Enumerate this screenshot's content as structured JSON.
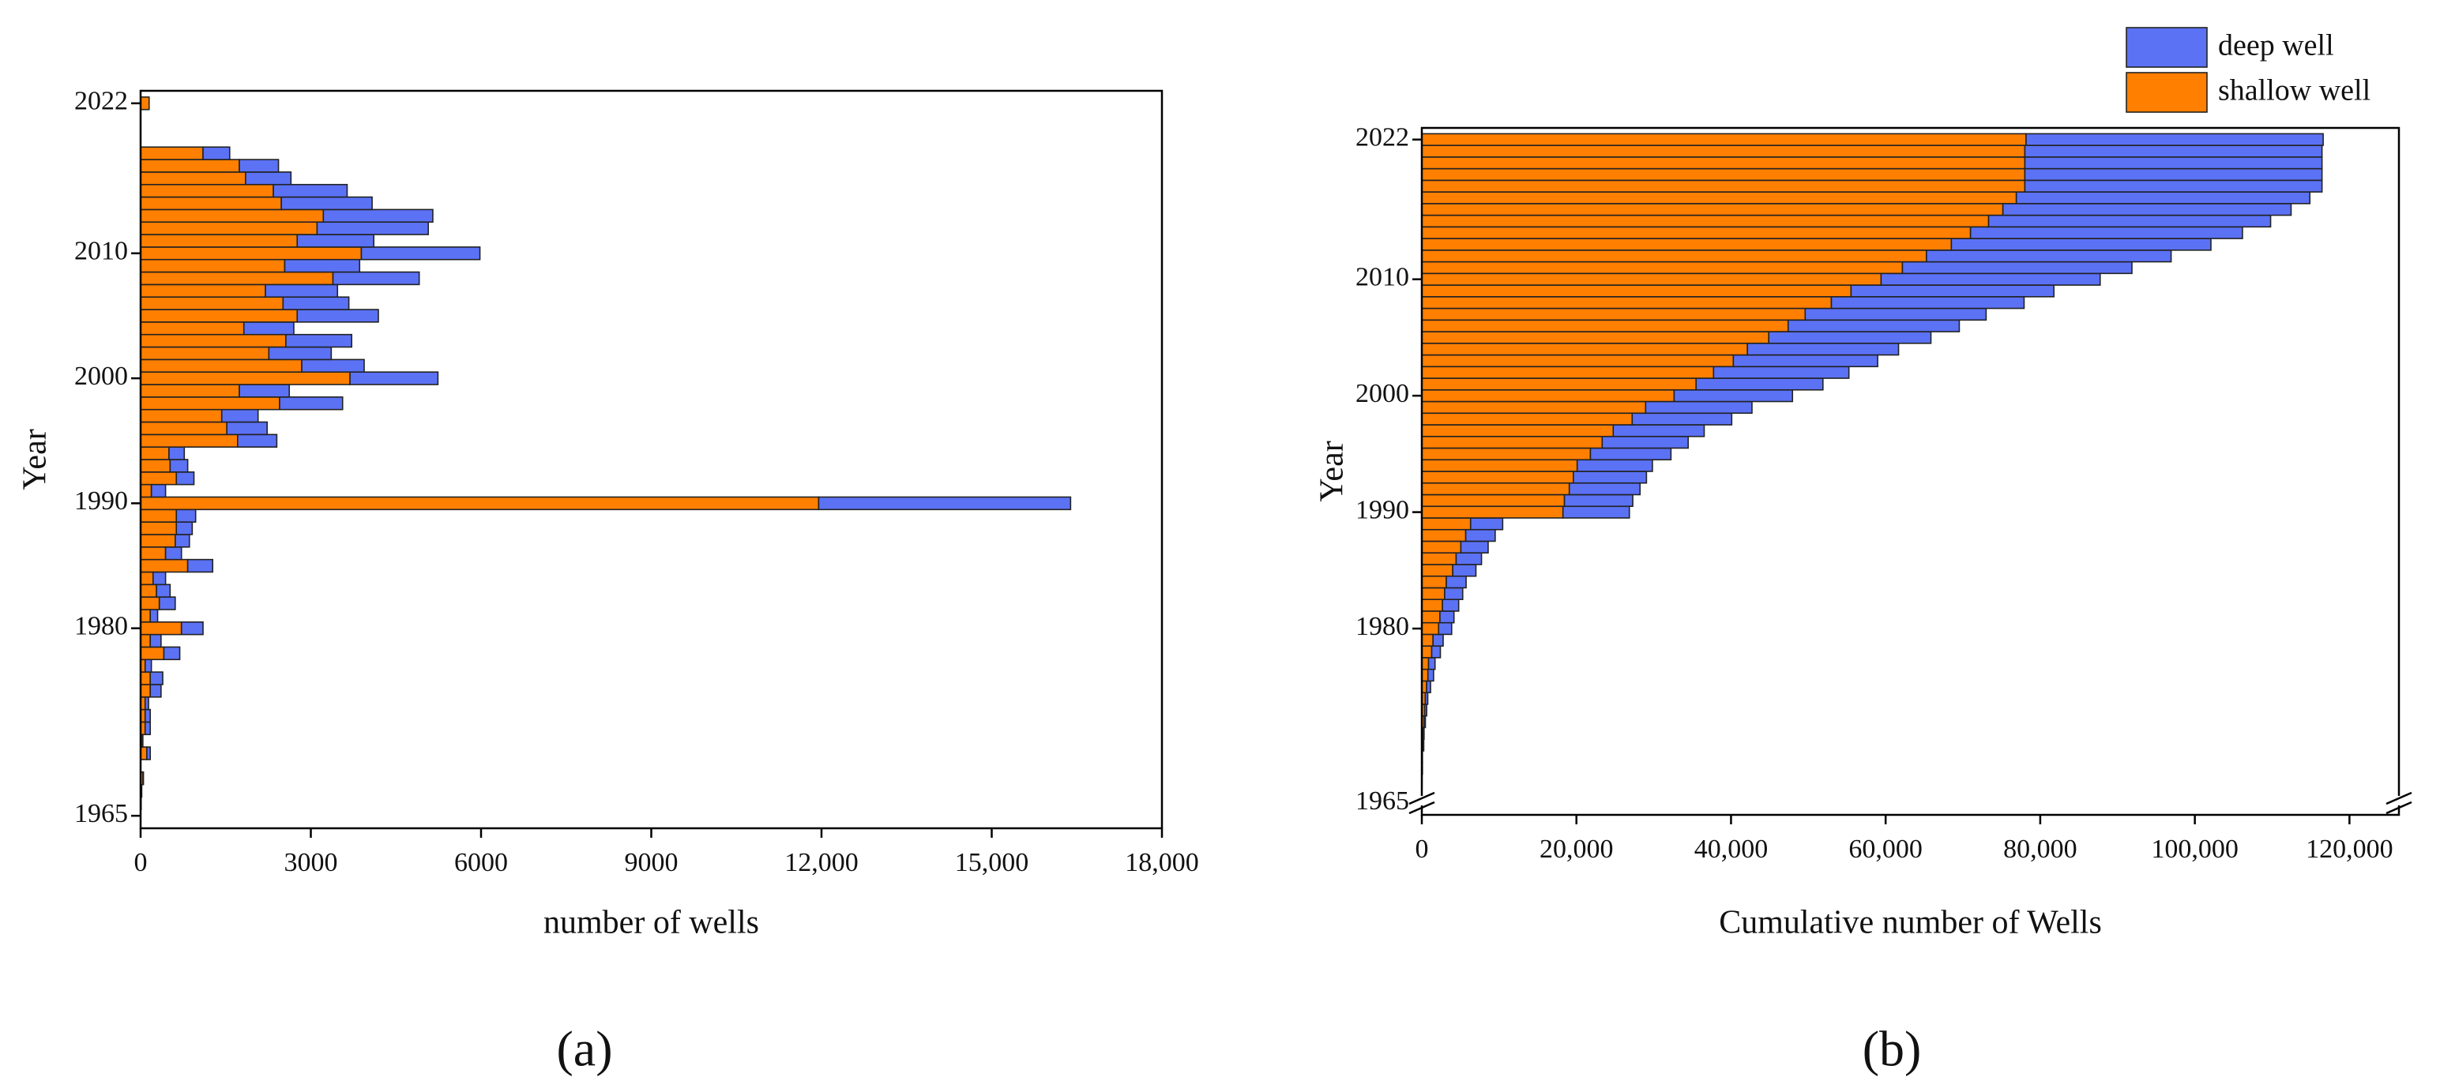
{
  "chart_data": [
    {
      "type": "bar",
      "orientation": "horizontal",
      "stacked": true,
      "panel_label": "(a)",
      "xlabel": "number of wells",
      "ylabel": "Year",
      "y": [
        1965,
        1966,
        1967,
        1968,
        1969,
        1970,
        1971,
        1972,
        1973,
        1974,
        1975,
        1976,
        1977,
        1978,
        1979,
        1980,
        1981,
        1982,
        1983,
        1984,
        1985,
        1986,
        1987,
        1988,
        1989,
        1990,
        1991,
        1992,
        1993,
        1994,
        1995,
        1996,
        1997,
        1998,
        1999,
        2000,
        2001,
        2002,
        2003,
        2004,
        2005,
        2006,
        2007,
        2008,
        2009,
        2010,
        2011,
        2012,
        2013,
        2014,
        2015,
        2016,
        2017,
        2018,
        2019,
        2020,
        2021,
        2022
      ],
      "series": [
        {
          "color": "#ff7f00",
          "values": [
            0,
            10,
            20,
            40,
            0,
            110,
            30,
            80,
            80,
            80,
            170,
            170,
            80,
            410,
            170,
            720,
            170,
            330,
            280,
            220,
            830,
            440,
            610,
            630,
            630,
            11950,
            190,
            630,
            520,
            500,
            1710,
            1520,
            1430,
            2450,
            1740,
            3690,
            2840,
            2260,
            2560,
            1820,
            2760,
            2510,
            2200,
            3390,
            2540,
            3890,
            2760,
            3110,
            3220,
            2480,
            2340,
            1850,
            1740,
            1100,
            0,
            0,
            0,
            150
          ]
        },
        {
          "color": "#5b72f5",
          "values": [
            0,
            0,
            0,
            10,
            0,
            60,
            10,
            90,
            90,
            60,
            190,
            220,
            110,
            280,
            190,
            380,
            130,
            280,
            240,
            220,
            440,
            280,
            250,
            280,
            340,
            4440,
            250,
            310,
            310,
            270,
            690,
            710,
            640,
            1110,
            880,
            1550,
            1100,
            1100,
            1160,
            880,
            1430,
            1160,
            1270,
            1520,
            1320,
            2090,
            1350,
            1960,
            1930,
            1600,
            1300,
            800,
            690,
            470,
            0,
            0,
            0,
            0
          ]
        }
      ],
      "xlim": [
        0,
        18000
      ],
      "xticks": [
        0,
        3000,
        6000,
        9000,
        {
          "value": 12000,
          "label": "12,000"
        },
        {
          "value": 15000,
          "label": "15,000"
        },
        {
          "value": 18000,
          "label": "18,000"
        }
      ],
      "ylim": [
        1964,
        2023
      ],
      "yticks": [
        1965,
        1980,
        1990,
        2000,
        2010,
        2022
      ]
    },
    {
      "type": "bar",
      "orientation": "horizontal",
      "stacked": true,
      "panel_label": "(b)",
      "xlabel": "Cumulative number of Wells",
      "ylabel": "Year",
      "legend": "top right",
      "axis_break": true,
      "y": [
        1965,
        1966,
        1967,
        1968,
        1969,
        1970,
        1971,
        1972,
        1973,
        1974,
        1975,
        1976,
        1977,
        1978,
        1979,
        1980,
        1981,
        1982,
        1983,
        1984,
        1985,
        1986,
        1987,
        1988,
        1989,
        1990,
        1991,
        1992,
        1993,
        1994,
        1995,
        1996,
        1997,
        1998,
        1999,
        2000,
        2001,
        2002,
        2003,
        2004,
        2005,
        2006,
        2007,
        2008,
        2009,
        2010,
        2011,
        2012,
        2013,
        2014,
        2015,
        2016,
        2017,
        2018,
        2019,
        2020,
        2021,
        2022
      ],
      "series": [
        {
          "name": "shallow well",
          "color": "#ff7f00",
          "values": [
            0,
            10,
            30,
            70,
            70,
            180,
            210,
            290,
            370,
            450,
            620,
            790,
            870,
            1280,
            1450,
            2170,
            2340,
            2670,
            2950,
            3170,
            4000,
            4440,
            5050,
            5680,
            6310,
            18260,
            18450,
            19080,
            19600,
            20100,
            21810,
            23330,
            24760,
            27210,
            28950,
            32640,
            35480,
            37740,
            40300,
            42120,
            44880,
            47390,
            49590,
            52980,
            55520,
            59410,
            62170,
            65280,
            68500,
            70980,
            73320,
            75170,
            76910,
            78010,
            78010,
            78010,
            78010,
            78160
          ]
        },
        {
          "name": "deep well",
          "color": "#5b72f5",
          "values": [
            0,
            0,
            0,
            10,
            10,
            70,
            80,
            170,
            260,
            320,
            510,
            730,
            840,
            1120,
            1310,
            1690,
            1820,
            2100,
            2340,
            2560,
            3000,
            3280,
            3530,
            3810,
            4150,
            8590,
            8840,
            9150,
            9460,
            9730,
            10420,
            11130,
            11770,
            12880,
            13760,
            15310,
            16410,
            17510,
            18670,
            19550,
            20980,
            22140,
            23410,
            24930,
            26250,
            28340,
            29690,
            31650,
            33580,
            35180,
            36480,
            37280,
            37970,
            38440,
            38440,
            38440,
            38440,
            38440
          ]
        }
      ],
      "xlim": [
        0,
        126400
      ],
      "xticks": [
        0,
        {
          "value": 20000,
          "label": "20,000"
        },
        {
          "value": 40000,
          "label": "40,000"
        },
        {
          "value": 60000,
          "label": "60,000"
        },
        {
          "value": 80000,
          "label": "80,000"
        },
        {
          "value": 100000,
          "label": "100,000"
        },
        {
          "value": 120000,
          "label": "120,000"
        }
      ],
      "ylim": [
        1964,
        2023
      ],
      "yticks": [
        1965,
        1980,
        1990,
        2000,
        2010,
        2022
      ]
    }
  ]
}
